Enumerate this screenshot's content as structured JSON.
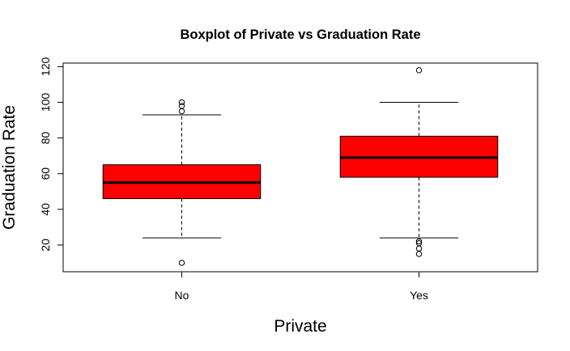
{
  "chart_data": {
    "type": "boxplot",
    "title": "Boxplot of Private vs Graduation Rate",
    "xlabel": "Private",
    "ylabel": "Graduation Rate",
    "categories": [
      "No",
      "Yes"
    ],
    "ylim": [
      5,
      122
    ],
    "yticks": [
      20,
      40,
      60,
      80,
      100,
      120
    ],
    "y_tick_labels": [
      "20",
      "40",
      "60",
      "80",
      "100",
      "120"
    ],
    "grid": false,
    "box_color": "#ff0000",
    "boxes": [
      {
        "category": "No",
        "whisker_low": 24,
        "q1": 46,
        "median": 55,
        "q3": 65,
        "whisker_high": 93,
        "outliers": [
          10,
          95,
          98,
          100
        ]
      },
      {
        "category": "Yes",
        "whisker_low": 24,
        "q1": 58,
        "median": 69,
        "q3": 81,
        "whisker_high": 100,
        "outliers": [
          15,
          18,
          21,
          22,
          118
        ]
      }
    ]
  }
}
